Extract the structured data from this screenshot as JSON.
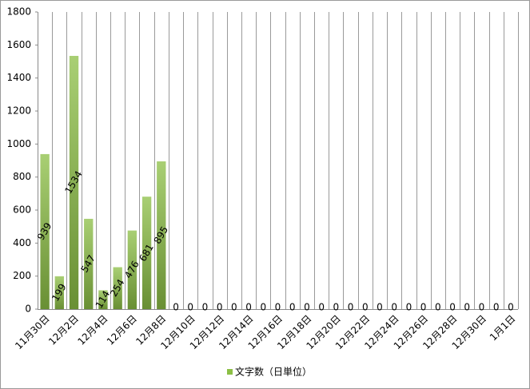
{
  "chart_data": {
    "type": "bar",
    "categories": [
      "11月30日",
      null,
      "12月2日",
      null,
      "12月4日",
      null,
      "12月6日",
      null,
      "12月8日",
      null,
      "12月10日",
      null,
      "12月12日",
      null,
      "12月14日",
      null,
      "12月16日",
      null,
      "12月18日",
      null,
      "12月20日",
      null,
      "12月22日",
      null,
      "12月24日",
      null,
      "12月26日",
      null,
      "12月28日",
      null,
      "12月30日",
      null,
      "1月1日"
    ],
    "series": [
      {
        "name": "文字数（日単位）",
        "color": "#8cbf45",
        "values": [
          939,
          199,
          1534,
          547,
          114,
          254,
          476,
          681,
          895,
          0,
          0,
          0,
          0,
          0,
          0,
          0,
          0,
          0,
          0,
          0,
          0,
          0,
          0,
          0,
          0,
          0,
          0,
          0,
          0,
          0,
          0,
          0,
          0
        ]
      }
    ],
    "ylim": [
      0,
      1800
    ],
    "yticks": [
      0,
      200,
      400,
      600,
      800,
      1000,
      1200,
      1400,
      1600,
      1800
    ],
    "grid": "vertical",
    "legend": "bottom"
  }
}
